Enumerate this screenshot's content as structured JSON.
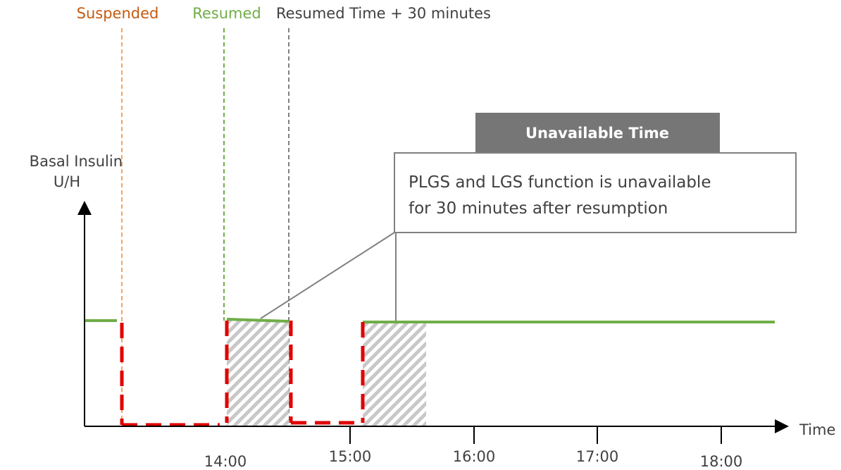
{
  "markers": {
    "suspended": "Suspended",
    "resumed": "Resumed",
    "resumed_plus": "Resumed Time + 30 minutes"
  },
  "y_axis": {
    "label_lines": [
      "Basal Insulin",
      "U/H"
    ]
  },
  "x_axis": {
    "label": "Time",
    "ticks": [
      "14:00",
      "15:00",
      "16:00",
      "17:00",
      "18:00"
    ]
  },
  "callout": {
    "title": "Unavailable Time",
    "lines": [
      "PLGS and LGS function is unavailable",
      "for 30 minutes after resumption"
    ]
  }
}
